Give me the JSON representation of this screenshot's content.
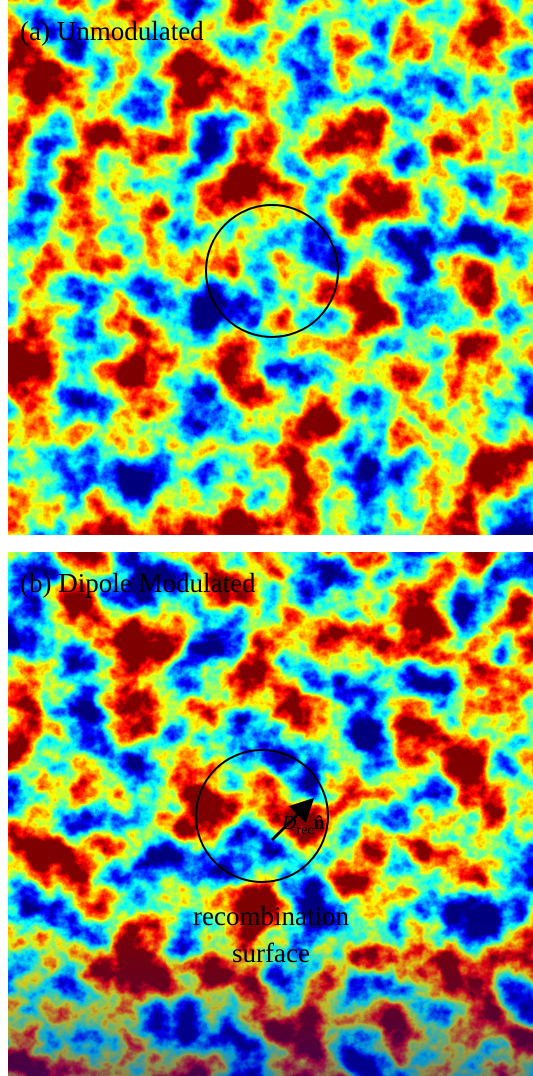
{
  "panels": [
    {
      "title": "(a) Unmodulated"
    },
    {
      "title": "(b) Dipole Modulated",
      "arrow_label": {
        "symbol": "D",
        "subscript": "rec",
        "vector": "n̂"
      },
      "annotation": [
        "recombination",
        "surface"
      ]
    }
  ]
}
